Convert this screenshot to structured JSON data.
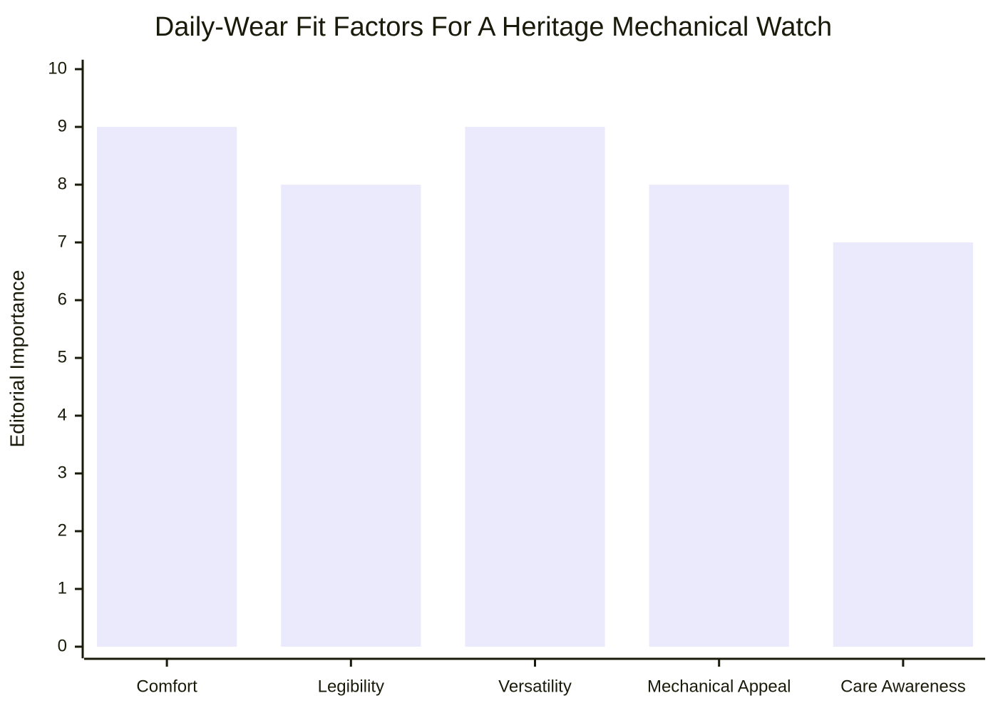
{
  "chart_data": {
    "type": "bar",
    "title": "Daily-Wear Fit Factors For A Heritage Mechanical Watch",
    "y_label": "Editorial Importance",
    "categories": [
      "Comfort",
      "Legibility",
      "Versatility",
      "Mechanical Appeal",
      "Care Awareness"
    ],
    "values": [
      9,
      8,
      9,
      8,
      7
    ],
    "color": "#ebeafc",
    "ylim": [
      -0.2,
      10.2
    ],
    "yticks": [
      0,
      1,
      2,
      3,
      4,
      5,
      6,
      7,
      8,
      9,
      10
    ],
    "grid": false
  }
}
